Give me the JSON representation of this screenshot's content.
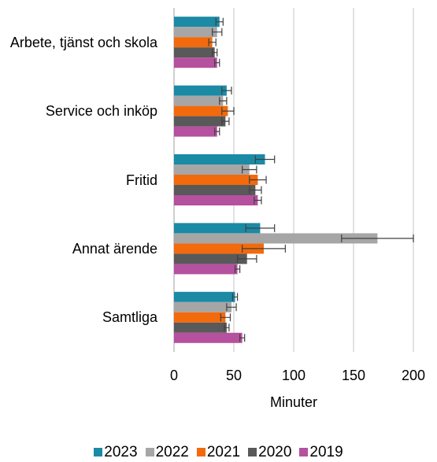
{
  "chart_data": {
    "type": "bar",
    "orientation": "horizontal",
    "categories": [
      "Arbete, tjänst och skola",
      "Service och inköp",
      "Fritid",
      "Annat ärende",
      "Samtliga"
    ],
    "series": [
      {
        "name": "2023",
        "color": "#1b8aa5",
        "values": [
          38,
          44,
          76,
          72,
          51
        ],
        "errors": [
          3,
          4,
          8,
          12,
          2
        ]
      },
      {
        "name": "2022",
        "color": "#a6a6a6",
        "values": [
          36,
          41,
          63,
          170,
          48
        ],
        "errors": [
          4,
          3,
          6,
          30,
          4
        ]
      },
      {
        "name": "2021",
        "color": "#f26a0c",
        "values": [
          32,
          45,
          70,
          75,
          43
        ],
        "errors": [
          3,
          5,
          7,
          18,
          4
        ]
      },
      {
        "name": "2020",
        "color": "#595959",
        "values": [
          34,
          43,
          68,
          61,
          44
        ],
        "errors": [
          2,
          3,
          5,
          8,
          2
        ]
      },
      {
        "name": "2019",
        "color": "#b5519e",
        "values": [
          36,
          36,
          70,
          53,
          57
        ],
        "errors": [
          2,
          2,
          3,
          2,
          2
        ]
      }
    ],
    "x_label": "Minuter",
    "xlim": [
      0,
      200
    ],
    "xticks": [
      0,
      50,
      100,
      150,
      200
    ],
    "grid": true,
    "legend": "bottom"
  }
}
